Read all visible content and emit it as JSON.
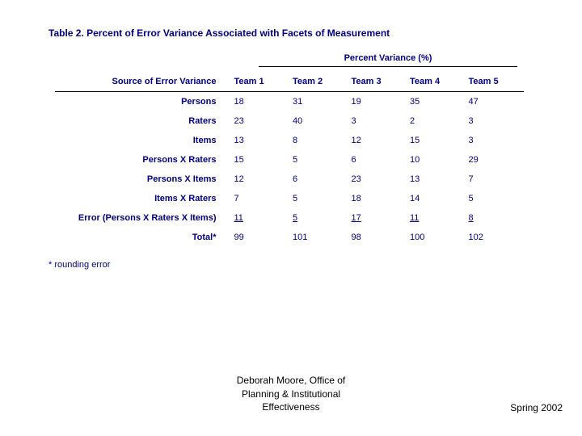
{
  "colors": {
    "text_primary": "#000080",
    "text_footer": "#000000",
    "background": "#ffffff",
    "rule": "#000000"
  },
  "typography": {
    "font_family": "Arial, Helvetica, sans-serif",
    "title_fontsize": 12,
    "header_fontsize": 11,
    "cell_fontsize": 11,
    "footer_fontsize": 12
  },
  "table": {
    "title": "Table 2.  Percent of Error Variance Associated with Facets of Measurement",
    "super_header": "Percent Variance (%)",
    "row_header_label": "Source of Error Variance",
    "columns": [
      "Team 1",
      "Team 2",
      "Team 3",
      "Team 4",
      "Team 5"
    ],
    "rows": [
      {
        "label": "Persons",
        "values": [
          "18",
          "31",
          "19",
          "35",
          "47"
        ]
      },
      {
        "label": "Raters",
        "values": [
          "23",
          "40",
          "3",
          "2",
          "3"
        ]
      },
      {
        "label": "Items",
        "values": [
          "13",
          "8",
          "12",
          "15",
          "3"
        ]
      },
      {
        "label": "Persons X Raters",
        "values": [
          "15",
          "5",
          "6",
          "10",
          "29"
        ]
      },
      {
        "label": "Persons X Items",
        "values": [
          "12",
          "6",
          "23",
          "13",
          "7"
        ]
      },
      {
        "label": "Items X Raters",
        "values": [
          "7",
          "5",
          "18",
          "14",
          "5"
        ]
      },
      {
        "label": "Error (Persons X Raters X Items)",
        "values": [
          "11",
          "5",
          "17",
          "11",
          "8"
        ],
        "underline": true
      },
      {
        "label": "Total*",
        "values": [
          "99",
          "101",
          "98",
          "100",
          "102"
        ]
      }
    ],
    "footnote": "* rounding error"
  },
  "footer": {
    "center_line1": "Deborah Moore, Office of",
    "center_line2": "Planning & Institutional",
    "center_line3": "Effectiveness",
    "right": "Spring 2002"
  }
}
